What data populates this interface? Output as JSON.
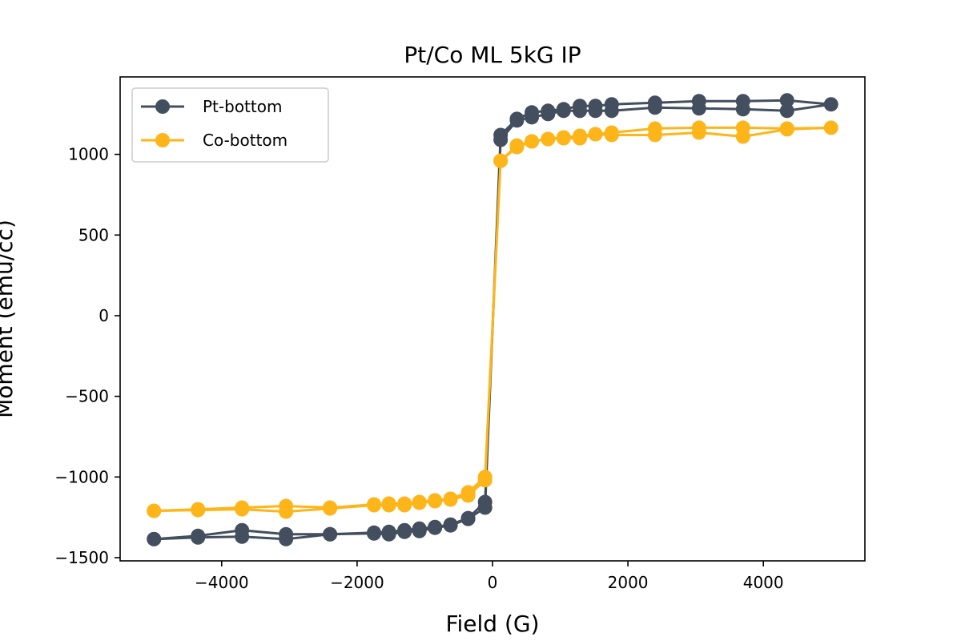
{
  "chart_data": {
    "type": "line",
    "title": "Pt/Co ML 5kG IP",
    "xlabel": "Field (G)",
    "ylabel": "Moment (emu/cc)",
    "xlim": [
      -5500,
      5500
    ],
    "ylim": [
      -1520,
      1480
    ],
    "xticks": [
      -4000,
      -2000,
      0,
      2000,
      4000
    ],
    "xtick_labels": [
      "−4000",
      "−2000",
      "0",
      "2000",
      "4000"
    ],
    "yticks": [
      -1500,
      -1000,
      -500,
      0,
      500,
      1000
    ],
    "ytick_labels": [
      "−1500",
      "−1000",
      "−500",
      "0",
      "500",
      "1000"
    ],
    "grid": false,
    "legend_position": "top-left",
    "series": [
      {
        "name": "Pt-bottom",
        "color": "#434f5e",
        "x": [
          -5000,
          -4350,
          -3700,
          -3050,
          -2400,
          -1750,
          -1530,
          -1300,
          -1080,
          -850,
          -620,
          -360,
          -110,
          120,
          360,
          580,
          820,
          1050,
          1290,
          1520,
          1760,
          2400,
          3050,
          3700,
          4350,
          5000,
          4350,
          3700,
          3050,
          2400,
          1760,
          1520,
          1290,
          1050,
          820,
          580,
          360,
          120,
          -110,
          -360,
          -620,
          -850,
          -1080,
          -1300,
          -1530,
          -1750,
          -2400,
          -3050,
          -3700,
          -4350,
          -5000
        ],
        "y": [
          -1385,
          -1375,
          -1370,
          -1385,
          -1355,
          -1350,
          -1355,
          -1340,
          -1335,
          -1315,
          -1300,
          -1260,
          -1190,
          1120,
          1220,
          1260,
          1270,
          1280,
          1300,
          1300,
          1310,
          1320,
          1330,
          1330,
          1335,
          1310,
          1270,
          1280,
          1285,
          1290,
          1270,
          1270,
          1270,
          1270,
          1250,
          1230,
          1210,
          1090,
          -1155,
          -1255,
          -1295,
          -1310,
          -1320,
          -1330,
          -1340,
          -1345,
          -1355,
          -1355,
          -1330,
          -1365,
          -1385
        ]
      },
      {
        "name": "Co-bottom",
        "color": "#fdb519",
        "x": [
          -5000,
          -4350,
          -3700,
          -3050,
          -2400,
          -1750,
          -1530,
          -1300,
          -1080,
          -850,
          -620,
          -360,
          -110,
          120,
          360,
          580,
          820,
          1050,
          1290,
          1520,
          1760,
          2400,
          3050,
          3700,
          4350,
          5000,
          4350,
          3700,
          3050,
          2400,
          1760,
          1520,
          1290,
          1050,
          820,
          580,
          360,
          120,
          -110,
          -360,
          -620,
          -850,
          -1080,
          -1300,
          -1530,
          -1750,
          -2400,
          -3050,
          -3700,
          -4350,
          -5000
        ],
        "y": [
          -1210,
          -1205,
          -1200,
          -1215,
          -1195,
          -1175,
          -1175,
          -1175,
          -1160,
          -1150,
          -1140,
          -1115,
          -1020,
          960,
          1045,
          1080,
          1095,
          1105,
          1115,
          1125,
          1135,
          1160,
          1165,
          1165,
          1160,
          1165,
          1155,
          1110,
          1135,
          1120,
          1120,
          1125,
          1100,
          1100,
          1095,
          1080,
          1055,
          960,
          -1000,
          -1095,
          -1135,
          -1145,
          -1155,
          -1165,
          -1165,
          -1170,
          -1190,
          -1180,
          -1190,
          -1200,
          -1210
        ]
      }
    ]
  }
}
